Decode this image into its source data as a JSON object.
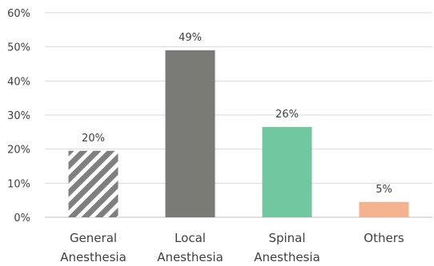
{
  "chart_data": {
    "type": "bar",
    "categories": [
      [
        "General",
        "Anesthesia"
      ],
      [
        "Local",
        "Anesthesia"
      ],
      [
        "Spinal",
        "Anesthesia"
      ],
      [
        "Others"
      ]
    ],
    "values": [
      20,
      49,
      26,
      5
    ],
    "plotted_values": [
      19.5,
      49,
      26.5,
      4.5
    ],
    "data_labels": [
      "20%",
      "49%",
      "26%",
      "5%"
    ],
    "colors": [
      "#7f7f7f",
      "#7a7a77",
      "#71c7a0",
      "#f5b28e"
    ],
    "patterns": [
      "diagonal-stripes",
      "solid",
      "solid",
      "solid"
    ],
    "ylim": [
      0,
      60
    ],
    "yticks": [
      0,
      10,
      20,
      30,
      40,
      50,
      60
    ],
    "ytick_labels": [
      "0%",
      "10%",
      "20%",
      "30%",
      "40%",
      "50%",
      "60%"
    ],
    "title": "",
    "xlabel": "",
    "ylabel": "",
    "grid": true,
    "grid_color": "#d9d9d9",
    "text_color": "#404040"
  }
}
